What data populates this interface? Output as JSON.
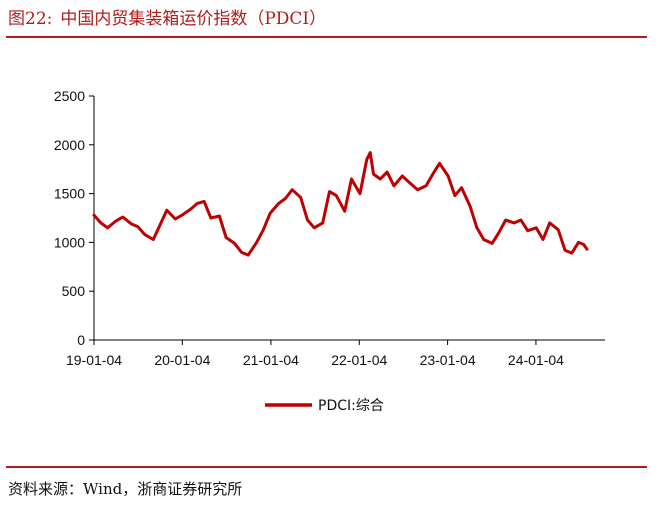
{
  "figure": {
    "label": "图22:",
    "title": "中国内贸集装箱运价指数（PDCI）",
    "source": "资料来源：Wind，浙商证券研究所"
  },
  "colors": {
    "accent": "#b31b1b",
    "series": "#c00000"
  },
  "chart_data": {
    "type": "line",
    "title": "",
    "xlabel": "",
    "ylabel": "",
    "ylim": [
      0,
      2500
    ],
    "yticks": [
      0,
      500,
      1000,
      1500,
      2000,
      2500
    ],
    "xticks": [
      "19-01-04",
      "20-01-04",
      "21-01-04",
      "22-01-04",
      "23-01-04",
      "24-01-04"
    ],
    "x_range": [
      "2019-01-04",
      "2024-08-02"
    ],
    "grid": false,
    "legend_position": "bottom",
    "series": [
      {
        "name": "PDCI:综合",
        "points": [
          [
            "2019-01-04",
            1280
          ],
          [
            "2019-02-01",
            1200
          ],
          [
            "2019-03-01",
            1150
          ],
          [
            "2019-04-05",
            1220
          ],
          [
            "2019-05-03",
            1260
          ],
          [
            "2019-06-07",
            1190
          ],
          [
            "2019-07-05",
            1160
          ],
          [
            "2019-08-02",
            1080
          ],
          [
            "2019-09-06",
            1030
          ],
          [
            "2019-10-04",
            1180
          ],
          [
            "2019-11-01",
            1330
          ],
          [
            "2019-12-06",
            1240
          ],
          [
            "2020-01-03",
            1280
          ],
          [
            "2020-02-07",
            1340
          ],
          [
            "2020-03-06",
            1400
          ],
          [
            "2020-04-03",
            1420
          ],
          [
            "2020-05-01",
            1250
          ],
          [
            "2020-06-05",
            1270
          ],
          [
            "2020-07-03",
            1050
          ],
          [
            "2020-08-07",
            990
          ],
          [
            "2020-09-04",
            900
          ],
          [
            "2020-10-02",
            870
          ],
          [
            "2020-11-06",
            1000
          ],
          [
            "2020-12-04",
            1130
          ],
          [
            "2021-01-01",
            1300
          ],
          [
            "2021-02-05",
            1400
          ],
          [
            "2021-03-05",
            1450
          ],
          [
            "2021-04-02",
            1540
          ],
          [
            "2021-05-07",
            1460
          ],
          [
            "2021-06-04",
            1230
          ],
          [
            "2021-07-02",
            1150
          ],
          [
            "2021-08-06",
            1200
          ],
          [
            "2021-09-03",
            1520
          ],
          [
            "2021-10-01",
            1480
          ],
          [
            "2021-11-05",
            1320
          ],
          [
            "2021-12-03",
            1650
          ],
          [
            "2022-01-07",
            1500
          ],
          [
            "2022-02-04",
            1850
          ],
          [
            "2022-02-18",
            1920
          ],
          [
            "2022-03-04",
            1700
          ],
          [
            "2022-04-01",
            1650
          ],
          [
            "2022-04-29",
            1720
          ],
          [
            "2022-05-27",
            1580
          ],
          [
            "2022-07-01",
            1680
          ],
          [
            "2022-08-05",
            1600
          ],
          [
            "2022-09-02",
            1540
          ],
          [
            "2022-10-07",
            1580
          ],
          [
            "2022-11-04",
            1700
          ],
          [
            "2022-12-02",
            1810
          ],
          [
            "2023-01-06",
            1680
          ],
          [
            "2023-02-03",
            1480
          ],
          [
            "2023-03-03",
            1560
          ],
          [
            "2023-04-07",
            1370
          ],
          [
            "2023-05-05",
            1150
          ],
          [
            "2023-06-02",
            1030
          ],
          [
            "2023-07-07",
            990
          ],
          [
            "2023-08-04",
            1100
          ],
          [
            "2023-09-01",
            1230
          ],
          [
            "2023-10-06",
            1200
          ],
          [
            "2023-11-03",
            1230
          ],
          [
            "2023-12-01",
            1120
          ],
          [
            "2024-01-05",
            1150
          ],
          [
            "2024-02-02",
            1030
          ],
          [
            "2024-03-01",
            1200
          ],
          [
            "2024-04-05",
            1130
          ],
          [
            "2024-05-03",
            920
          ],
          [
            "2024-05-31",
            890
          ],
          [
            "2024-06-28",
            1000
          ],
          [
            "2024-07-19",
            980
          ],
          [
            "2024-08-02",
            930
          ]
        ]
      }
    ]
  }
}
